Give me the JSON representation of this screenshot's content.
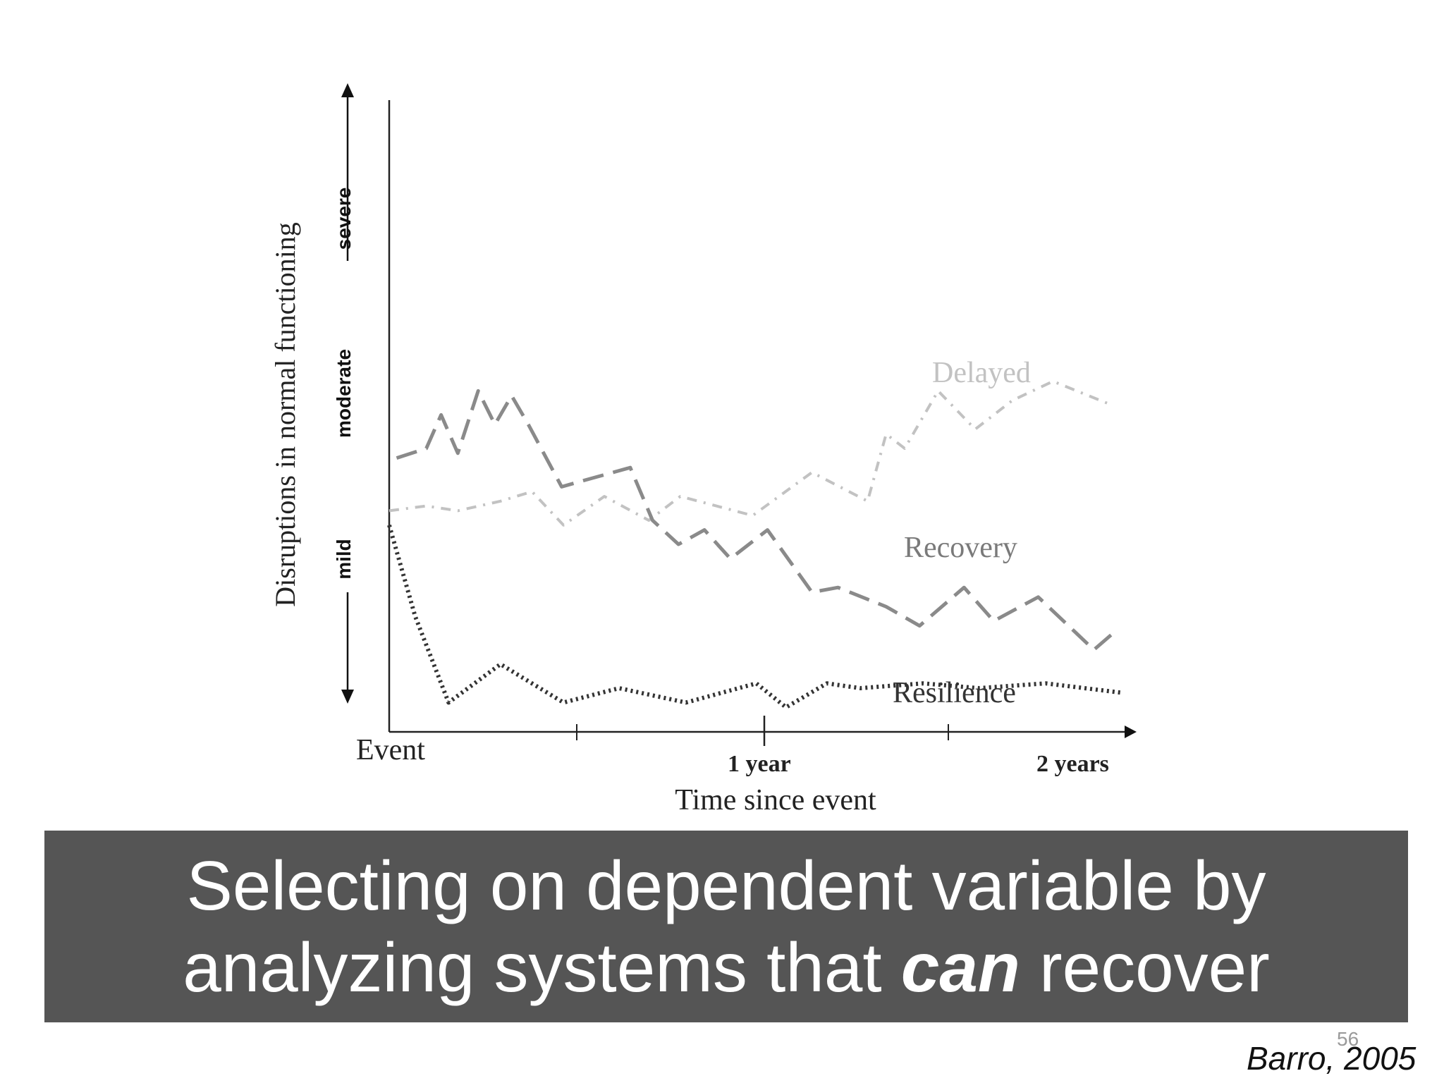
{
  "chart_data": {
    "type": "line",
    "xlabel": "Time since event",
    "ylabel": "Disruptions in normal functioning",
    "x_tick_labels": [
      "Event",
      "1 year",
      "2 years"
    ],
    "y_tick_labels": [
      "severe",
      "moderate",
      "mild"
    ],
    "xlim": [
      0,
      2
    ],
    "ylim": [
      0,
      10
    ],
    "series": [
      {
        "name": "Delayed",
        "style": "dash-dot",
        "color": "#c2c2c2",
        "x": [
          0,
          0.1,
          0.185,
          0.3,
          0.385,
          0.47,
          0.58,
          0.7,
          0.785,
          0.98,
          1.14,
          1.29,
          1.34,
          1.39,
          1.48,
          1.58,
          1.68,
          1.79,
          1.95
        ],
        "y": [
          4.2,
          4.3,
          4.2,
          4.4,
          4.6,
          3.9,
          4.5,
          4.0,
          4.5,
          4.1,
          5.0,
          4.4,
          5.8,
          5.5,
          6.7,
          5.9,
          6.5,
          6.9,
          6.4
        ]
      },
      {
        "name": "Recovery",
        "style": "dashed",
        "color": "#8a8a8a",
        "x": [
          0.02,
          0.1,
          0.14,
          0.185,
          0.24,
          0.285,
          0.33,
          0.375,
          0.465,
          0.51,
          0.65,
          0.71,
          0.78,
          0.85,
          0.92,
          1.02,
          1.14,
          1.21,
          1.34,
          1.43,
          1.55,
          1.63,
          1.75,
          1.9,
          1.96
        ],
        "y": [
          5.3,
          5.5,
          6.2,
          5.4,
          6.7,
          6.0,
          6.6,
          6.0,
          4.7,
          4.8,
          5.1,
          4.0,
          3.5,
          3.8,
          3.2,
          3.8,
          2.5,
          2.6,
          2.2,
          1.8,
          2.6,
          1.9,
          2.4,
          1.3,
          1.7
        ]
      },
      {
        "name": "Resilience",
        "style": "dotted",
        "color": "#333333",
        "x": [
          0,
          0.07,
          0.16,
          0.3,
          0.47,
          0.62,
          0.8,
          0.99,
          1.07,
          1.18,
          1.27,
          1.44,
          1.59,
          1.77,
          1.98
        ],
        "y": [
          3.9,
          2.0,
          0.2,
          1.0,
          0.2,
          0.5,
          0.2,
          0.6,
          0.1,
          0.6,
          0.5,
          0.6,
          0.5,
          0.6,
          0.4
        ]
      }
    ]
  },
  "caption": {
    "line1": "Selecting on dependent variable by",
    "line2_before": "analyzing systems that ",
    "line2_emphasis": "can",
    "line2_after": " recover"
  },
  "slide_number": "56",
  "citation": "Barro, 2005"
}
